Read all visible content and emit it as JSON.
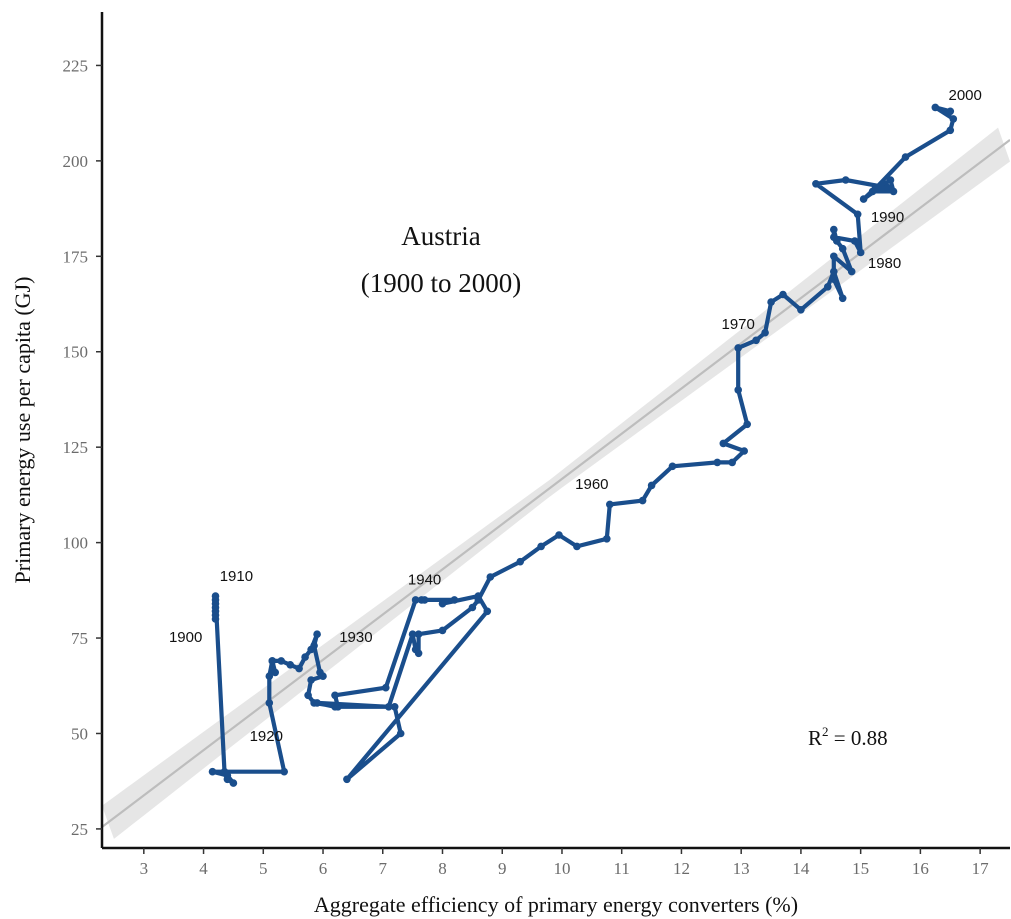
{
  "chart_data": {
    "type": "line",
    "title": "Austria",
    "subtitle": "(1900 to 2000)",
    "xlabel": "Aggregate efficiency of primary energy converters (%)",
    "ylabel": "Primary energy use per capita (GJ)",
    "xlim": [
      2.3,
      17.5
    ],
    "ylim": [
      20,
      239
    ],
    "x_ticks": [
      3,
      4,
      5,
      6,
      7,
      8,
      9,
      10,
      11,
      12,
      13,
      14,
      15,
      16,
      17
    ],
    "y_ticks": [
      25,
      50,
      75,
      100,
      125,
      150,
      175,
      200,
      225
    ],
    "r2_base": "R",
    "r2_exp": "2",
    "r2_rest": " = 0.88",
    "fit_line": {
      "x": [
        2.3,
        17.5
      ],
      "y": [
        25.5,
        205.5
      ]
    },
    "confidence_band_color": "#e6e6e6",
    "fit_line_color": "#bdbdbd",
    "series_color": "#1a4e8c",
    "series": [
      {
        "x": [
          4.2,
          4.2,
          4.2,
          4.2,
          4.2,
          4.2,
          4.2,
          4.35,
          4.4,
          4.5,
          4.4,
          4.15,
          5.35,
          5.1,
          5.1,
          5.15,
          5.2,
          5.15,
          5.3,
          5.45,
          5.6,
          5.7,
          5.8,
          5.9,
          5.85,
          5.95,
          6.0,
          5.8,
          5.75,
          5.85,
          6.25,
          6.2,
          7.05,
          7.55,
          7.7,
          7.65,
          8.2,
          8.0,
          8.6,
          8.75,
          6.4,
          7.3,
          7.2,
          6.2,
          5.9,
          7.1,
          7.5,
          7.55,
          7.6,
          7.6,
          8.0,
          8.5,
          8.6,
          8.8,
          9.3,
          9.65,
          9.95,
          10.25,
          10.75,
          10.8,
          11.35,
          11.5,
          11.85,
          12.6,
          12.85,
          13.05,
          12.7,
          13.1,
          12.95,
          12.95,
          13.25,
          13.4,
          13.5,
          13.7,
          14.0,
          14.45,
          14.55,
          14.7,
          14.55,
          14.55,
          14.85,
          14.7,
          14.6,
          14.55,
          14.55,
          14.9,
          15.0,
          14.95,
          14.25,
          14.75,
          15.45,
          15.25,
          15.05,
          15.5,
          15.55,
          15.2,
          15.75,
          16.5,
          16.55,
          16.25,
          16.5
        ],
        "y": [
          80,
          81,
          82,
          83,
          84,
          85,
          86,
          40,
          38,
          37,
          39,
          40,
          40,
          58,
          65,
          69,
          66,
          69,
          69,
          68,
          67,
          70,
          72,
          76,
          73,
          66,
          65,
          64,
          60,
          58,
          57,
          60,
          62,
          85,
          85,
          85,
          85,
          84,
          86,
          82,
          38,
          50,
          57,
          57,
          58,
          57,
          76,
          72,
          71,
          76,
          77,
          83,
          85,
          91,
          95,
          99,
          102,
          99,
          101,
          110,
          111,
          115,
          120,
          121,
          121,
          124,
          126,
          131,
          140,
          151,
          153,
          155,
          163,
          165,
          161,
          167,
          171,
          164,
          169,
          175,
          171,
          177,
          179,
          182,
          180,
          179,
          176,
          186,
          194,
          195,
          193,
          193,
          190,
          195,
          192,
          192,
          201,
          208,
          211,
          214,
          213
        ]
      }
    ],
    "year_labels": [
      {
        "text": "1900",
        "x": 3.7,
        "y": 74
      },
      {
        "text": "1910",
        "x": 4.55,
        "y": 90
      },
      {
        "text": "1920",
        "x": 5.05,
        "y": 48
      },
      {
        "text": "1930",
        "x": 6.55,
        "y": 74
      },
      {
        "text": "1940",
        "x": 7.7,
        "y": 89
      },
      {
        "text": "1960",
        "x": 10.5,
        "y": 114
      },
      {
        "text": "1970",
        "x": 12.95,
        "y": 156
      },
      {
        "text": "1980",
        "x": 15.4,
        "y": 172
      },
      {
        "text": "1990",
        "x": 15.45,
        "y": 184
      },
      {
        "text": "2000",
        "x": 16.75,
        "y": 216
      }
    ]
  }
}
